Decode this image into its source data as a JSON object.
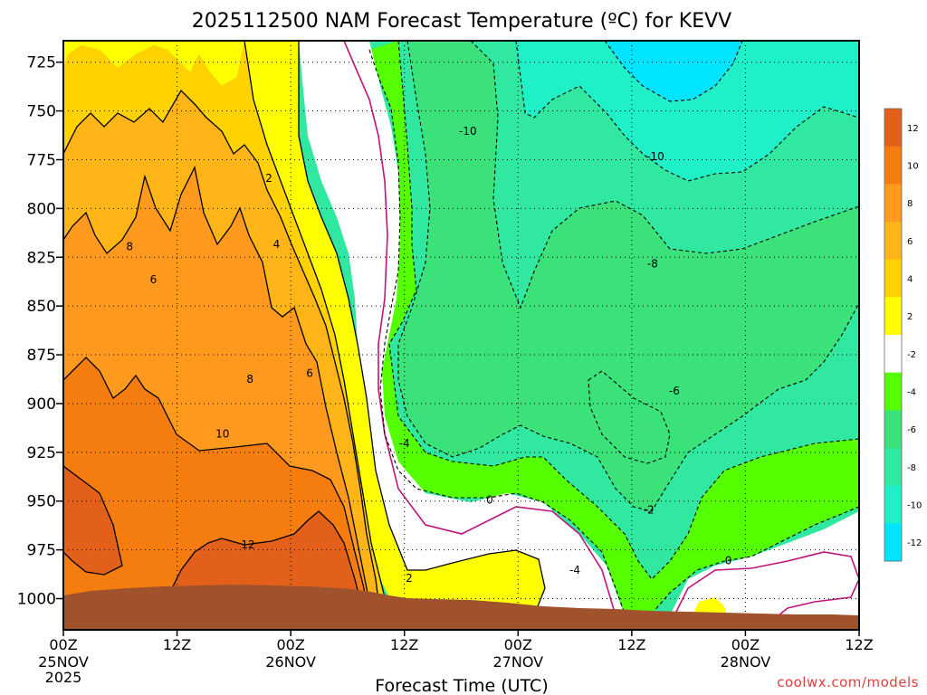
{
  "chart_data": {
    "type": "contour",
    "title": "2025112500 NAM Forecast Temperature (ºC) for KEVV",
    "xlabel": "Forecast Time (UTC)",
    "ylabel": "",
    "credit": "coolwx.com/models",
    "x_ticks": [
      {
        "hour": 0,
        "line1": "00Z",
        "line2": "25NOV",
        "line3": "2025"
      },
      {
        "hour": 12,
        "line1": "12Z",
        "line2": "",
        "line3": ""
      },
      {
        "hour": 24,
        "line1": "00Z",
        "line2": "26NOV",
        "line3": ""
      },
      {
        "hour": 36,
        "line1": "12Z",
        "line2": "",
        "line3": ""
      },
      {
        "hour": 48,
        "line1": "00Z",
        "line2": "27NOV",
        "line3": ""
      },
      {
        "hour": 60,
        "line1": "12Z",
        "line2": "",
        "line3": ""
      },
      {
        "hour": 72,
        "line1": "00Z",
        "line2": "28NOV",
        "line3": ""
      },
      {
        "hour": 84,
        "line1": "12Z",
        "line2": "",
        "line3": ""
      }
    ],
    "x_range_hours": [
      0,
      84
    ],
    "y_ticks": [
      "725",
      "750",
      "775",
      "800",
      "825",
      "850",
      "875",
      "900",
      "925",
      "950",
      "975",
      "1000"
    ],
    "y_range_hpa": [
      1016,
      714
    ],
    "grid": true,
    "colorbar": {
      "labels": [
        "12",
        "10",
        "8",
        "6",
        "4",
        "2",
        "-2",
        "-4",
        "-6",
        "-8",
        "-10",
        "-12"
      ],
      "colors": [
        "#e2601a",
        "#f57d10",
        "#ff9a1e",
        "#ffb418",
        "#ffd200",
        "#ffff00",
        "#ffffff",
        "#55ff00",
        "#3be27a",
        "#30e8a0",
        "#20f0c8",
        "#00e4ff"
      ]
    },
    "contour_labels": [
      {
        "text": "8",
        "t": 7.0,
        "p": 819
      },
      {
        "text": "6",
        "t": 9.5,
        "p": 836
      },
      {
        "text": "2",
        "t": 21.7,
        "p": 784
      },
      {
        "text": "4",
        "t": 22.5,
        "p": 818
      },
      {
        "text": "8",
        "t": 19.7,
        "p": 887
      },
      {
        "text": "6",
        "t": 26.0,
        "p": 884
      },
      {
        "text": "10",
        "t": 16.8,
        "p": 915
      },
      {
        "text": "12",
        "t": 19.5,
        "p": 972
      },
      {
        "text": "-4",
        "t": 36.0,
        "p": 920
      },
      {
        "text": "2",
        "t": 36.5,
        "p": 989
      },
      {
        "text": "0",
        "t": 45.0,
        "p": 949
      },
      {
        "text": "-10",
        "t": 42.7,
        "p": 760
      },
      {
        "text": "-10",
        "t": 62.5,
        "p": 773
      },
      {
        "text": "-8",
        "t": 62.2,
        "p": 828
      },
      {
        "text": "-6",
        "t": 64.5,
        "p": 893
      },
      {
        "text": "-2",
        "t": 61.8,
        "p": 954
      },
      {
        "text": "-4",
        "t": 54.0,
        "p": 985
      },
      {
        "text": "0",
        "t": 70.2,
        "p": 980
      }
    ]
  }
}
